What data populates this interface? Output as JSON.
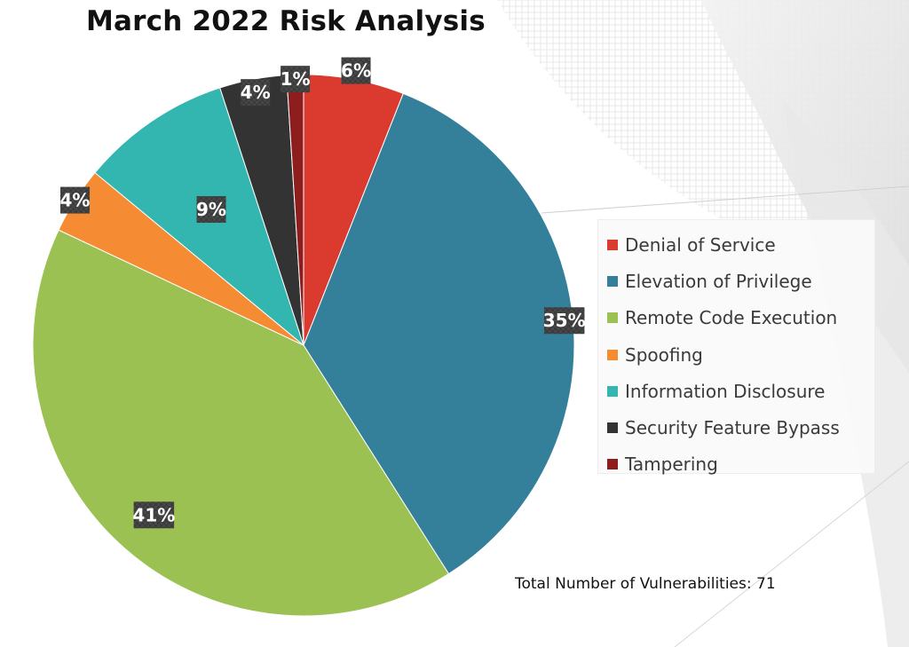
{
  "chart_data": {
    "type": "pie",
    "title": "March 2022 Risk Analysis",
    "slices": [
      {
        "name": "Denial of Service",
        "value": 6,
        "label": "6%",
        "color": "#db3a2f"
      },
      {
        "name": "Elevation of Privilege",
        "value": 35,
        "label": "35%",
        "color": "#347f99"
      },
      {
        "name": "Remote Code Execution",
        "value": 41,
        "label": "41%",
        "color": "#9bc152"
      },
      {
        "name": "Spoofing",
        "value": 4,
        "label": "4%",
        "color": "#f58b32"
      },
      {
        "name": "Information Disclosure",
        "value": 9,
        "label": "9%",
        "color": "#33b5b0"
      },
      {
        "name": "Security Feature Bypass",
        "value": 4,
        "label": "4%",
        "color": "#333333"
      },
      {
        "name": "Tampering",
        "value": 1,
        "label": "1%",
        "color": "#8e1e1e"
      }
    ],
    "legend_position": "right",
    "annotation": "Total Number of Vulnerabilities: 71"
  }
}
